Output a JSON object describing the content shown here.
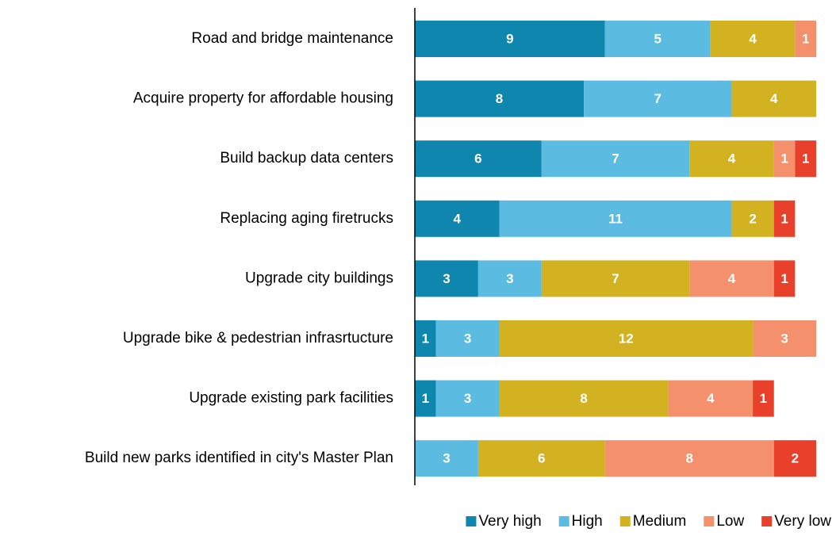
{
  "chart_data": {
    "type": "stacked-bar-horizontal",
    "categories": [
      "Road and bridge maintenance",
      "Acquire property for affordable housing",
      "Build backup data centers",
      "Replacing aging firetrucks",
      "Upgrade city buildings",
      "Upgrade bike & pedestrian infrasrtucture",
      "Upgrade existing park facilities",
      "Build new parks identified in city's Master Plan"
    ],
    "series": [
      {
        "name": "Very high",
        "color": "#0e86ae",
        "values": [
          9,
          8,
          6,
          4,
          3,
          1,
          1,
          null
        ]
      },
      {
        "name": "High",
        "color": "#5bbbe0",
        "values": [
          5,
          7,
          7,
          11,
          3,
          3,
          3,
          3
        ]
      },
      {
        "name": "Medium",
        "color": "#d3b221",
        "values": [
          4,
          4,
          4,
          2,
          7,
          12,
          8,
          6
        ]
      },
      {
        "name": "Low",
        "color": "#f4906c",
        "values": [
          1,
          null,
          1,
          null,
          4,
          3,
          4,
          8
        ]
      },
      {
        "name": "Very low",
        "color": "#e8402a",
        "values": [
          null,
          null,
          1,
          1,
          1,
          null,
          1,
          2
        ]
      }
    ],
    "legend": "bottom-right"
  }
}
